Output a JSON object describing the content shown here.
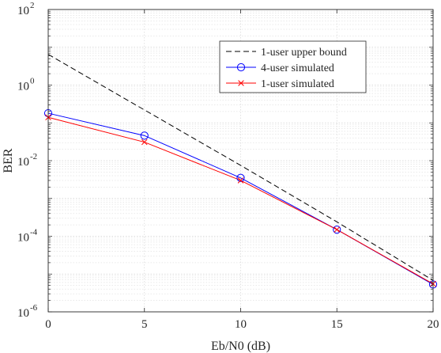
{
  "chart_data": {
    "type": "line",
    "title": "",
    "xlabel": "Eb/N0 (dB)",
    "ylabel": "BER",
    "xlim": [
      0,
      20
    ],
    "ylim": [
      1e-06,
      100
    ],
    "yscale": "log",
    "grid": "on",
    "x_ticks": [
      "0",
      "5",
      "10",
      "15",
      "20"
    ],
    "x_tick_values": [
      0,
      5,
      10,
      15,
      20
    ],
    "y_ticks": [
      {
        "base": "10",
        "exp": "-6",
        "value": 1e-06
      },
      {
        "base": "10",
        "exp": "-4",
        "value": 0.0001
      },
      {
        "base": "10",
        "exp": "-2",
        "value": 0.01
      },
      {
        "base": "10",
        "exp": "0",
        "value": 1
      },
      {
        "base": "10",
        "exp": "2",
        "value": 100
      }
    ],
    "legend_position": "top-right",
    "series": [
      {
        "name": "1-user upper bound",
        "color": "#000000",
        "line_style": "dashed",
        "marker": "none",
        "x": [
          0,
          5,
          10,
          15,
          20
        ],
        "y": [
          6.5,
          0.22,
          0.0075,
          0.00024,
          6.8e-06
        ]
      },
      {
        "name": "4-user simulated",
        "color": "#0000ff",
        "line_style": "solid",
        "marker": "circle",
        "x": [
          0,
          5,
          10,
          15,
          20
        ],
        "y": [
          0.18,
          0.046,
          0.0035,
          0.00015,
          5.3e-06
        ]
      },
      {
        "name": "1-user simulated",
        "color": "#ff0000",
        "line_style": "solid",
        "marker": "x",
        "x": [
          0,
          5,
          10,
          15,
          20
        ],
        "y": [
          0.14,
          0.031,
          0.003,
          0.00015,
          5.5e-06
        ]
      }
    ]
  }
}
